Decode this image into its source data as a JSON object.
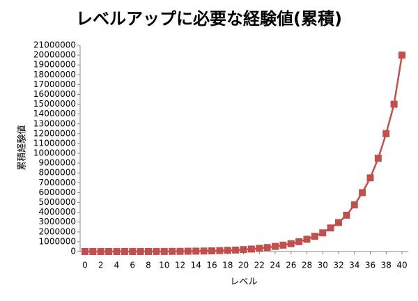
{
  "chart_data": {
    "type": "line",
    "title": "レベルアップに必要な経験値(累積)",
    "x_label": "レベル",
    "y_label": "累積経験値",
    "x": [
      0,
      1,
      2,
      3,
      4,
      5,
      6,
      7,
      8,
      9,
      10,
      11,
      12,
      13,
      14,
      15,
      16,
      17,
      18,
      19,
      20,
      21,
      22,
      23,
      24,
      25,
      26,
      27,
      28,
      29,
      30,
      31,
      32,
      33,
      34,
      35,
      36,
      37,
      38,
      39,
      40
    ],
    "series": [
      {
        "name": "累積経験値",
        "color": "#c0504d",
        "values": [
          0,
          50,
          100,
          300,
          600,
          1000,
          2000,
          3000,
          5000,
          7000,
          10000,
          15000,
          20000,
          30000,
          40000,
          50000,
          70000,
          90000,
          120000,
          150000,
          200000,
          250000,
          320000,
          410000,
          520000,
          650000,
          800000,
          1000000,
          1250000,
          1550000,
          1900000,
          2400000,
          2950000,
          3700000,
          4750000,
          6000000,
          7500000,
          9500000,
          12000000,
          15000000,
          20000000
        ]
      }
    ],
    "xlim": [
      0,
      40
    ],
    "xticks": [
      0,
      2,
      4,
      6,
      8,
      10,
      12,
      14,
      16,
      18,
      20,
      22,
      24,
      26,
      28,
      30,
      32,
      34,
      36,
      38,
      40
    ],
    "ylim": [
      0,
      21000000
    ],
    "yticks": [
      0,
      1000000,
      2000000,
      3000000,
      4000000,
      5000000,
      6000000,
      7000000,
      8000000,
      9000000,
      10000000,
      11000000,
      12000000,
      13000000,
      14000000,
      15000000,
      16000000,
      17000000,
      18000000,
      19000000,
      20000000,
      21000000
    ],
    "grid": false,
    "legend": false
  }
}
